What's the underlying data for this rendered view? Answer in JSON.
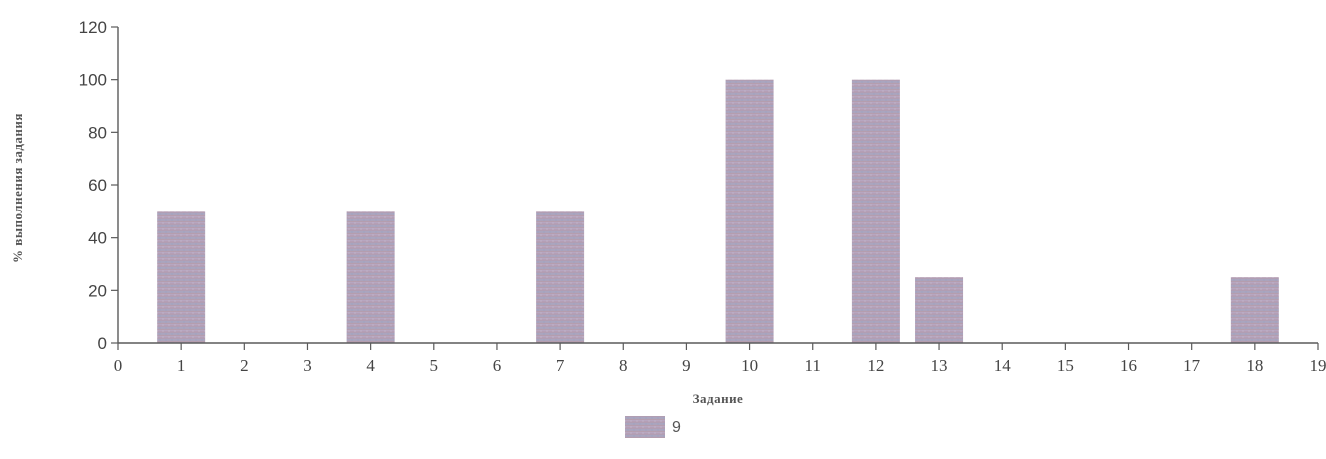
{
  "chart_data": {
    "type": "bar",
    "title": "",
    "xlabel": "Задание",
    "ylabel": "% выполнения задания",
    "x": [
      1,
      4,
      7,
      10,
      12,
      13,
      18
    ],
    "series": [
      {
        "name": "9",
        "values": [
          50,
          50,
          50,
          100,
          100,
          25,
          25
        ]
      }
    ],
    "xlim": [
      0,
      19
    ],
    "ylim": [
      0,
      120
    ],
    "xticks": [
      "0",
      "1",
      "2",
      "3",
      "4",
      "5",
      "6",
      "7",
      "8",
      "9",
      "10",
      "11",
      "12",
      "13",
      "14",
      "15",
      "16",
      "17",
      "18",
      "19"
    ],
    "yticks": [
      "0",
      "20",
      "40",
      "60",
      "80",
      "100",
      "120"
    ],
    "grid": false,
    "legend": "bottom-center",
    "colors": {
      "bar_a": "#b79fb2",
      "bar_b": "#a3a9c9",
      "axis": "#5a5a5a"
    }
  }
}
